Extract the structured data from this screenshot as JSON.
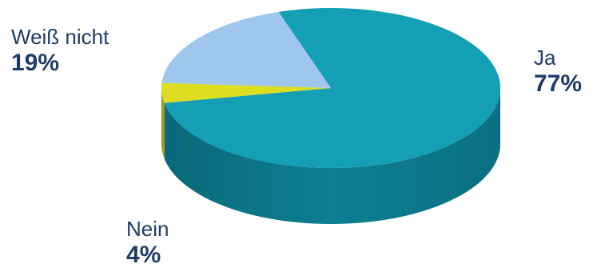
{
  "chart_data": {
    "type": "pie",
    "style": "3d",
    "categories": [
      "Ja",
      "Nein",
      "Weiß nicht"
    ],
    "values": [
      77,
      4,
      19
    ],
    "labels": [
      {
        "name": "Ja",
        "percent": "77%"
      },
      {
        "name": "Nein",
        "percent": "4%"
      },
      {
        "name": "Weiß nicht",
        "percent": "19%"
      }
    ],
    "colors": [
      "#149fb6",
      "#dddd22",
      "#9fc6ec"
    ],
    "side_colors": [
      "#0c7f93",
      "#a7a612",
      "#7f97b3"
    ]
  }
}
